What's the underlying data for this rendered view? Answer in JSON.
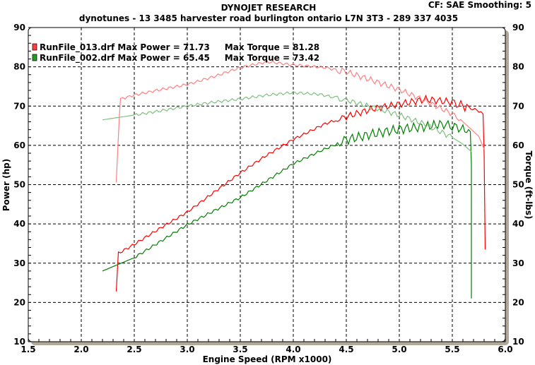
{
  "chart_data": {
    "type": "line",
    "title": "DYNOJET RESEARCH",
    "subtitle": "dynotunes - 13 3485 harvester road burlington ontario  L7N 3T3 - 289 337 4035",
    "info": "CF: SAE  Smoothing: 5",
    "xlabel": "Engine Speed (RPM x1000)",
    "ylabel": "Power (hp)",
    "y2label": "Torque (ft-lbs)",
    "xlim": [
      1.5,
      6.0
    ],
    "ylim": [
      10,
      90
    ],
    "xticks": [
      "1.5",
      "2.0",
      "2.5",
      "3.0",
      "3.5",
      "4.0",
      "4.5",
      "5.0",
      "5.5",
      "6.0"
    ],
    "yticks": [
      "10",
      "20",
      "30",
      "40",
      "50",
      "60",
      "70",
      "80",
      "90"
    ],
    "grid": true,
    "legend_placement": "top-left",
    "legend": [
      {
        "text": "RunFile_013.drf Max Power = 71.73     Max Torque = 81.28",
        "color": "#ff0000"
      },
      {
        "text": "RunFile_002.drf Max Power = 65.45     Max Torque = 73.42",
        "color": "#00a000"
      }
    ],
    "series": [
      {
        "name": "RunFile_013.drf Power",
        "color": "#ff0000",
        "x": [
          2.33,
          2.35,
          2.5,
          2.75,
          3.0,
          3.25,
          3.5,
          3.75,
          4.0,
          4.3,
          4.5,
          4.75,
          5.0,
          5.25,
          5.5,
          5.6,
          5.75,
          5.79,
          5.8,
          5.81
        ],
        "y": [
          22.8,
          32.5,
          34.8,
          39,
          43,
          48,
          53,
          57.5,
          61.5,
          65.5,
          67.3,
          69.3,
          70.5,
          71.73,
          71,
          70,
          68.8,
          68,
          58,
          33.5
        ]
      },
      {
        "name": "RunFile_013.drf Torque",
        "color": "#ff8080",
        "x": [
          2.33,
          2.36,
          2.37,
          2.5,
          2.75,
          3.0,
          3.25,
          3.5,
          3.75,
          4.0,
          4.3,
          4.5,
          4.75,
          5.0,
          5.25,
          5.5,
          5.6,
          5.75,
          5.8
        ],
        "y": [
          50.6,
          68,
          71.8,
          72.8,
          74.2,
          75.5,
          77.5,
          79.8,
          81.28,
          80.5,
          79.8,
          78.7,
          76.5,
          74.2,
          71.3,
          68,
          66,
          62.3,
          59
        ]
      },
      {
        "name": "RunFile_002.drf Power",
        "color": "#008000",
        "x": [
          2.2,
          2.5,
          2.75,
          3.0,
          3.25,
          3.5,
          3.75,
          4.0,
          4.25,
          4.5,
          4.75,
          5.0,
          5.25,
          5.4,
          5.6,
          5.67,
          5.68,
          5.68
        ],
        "y": [
          28,
          31.4,
          35.6,
          39.8,
          43.3,
          46.7,
          51,
          55.3,
          58.5,
          61.4,
          62.9,
          64.1,
          64.8,
          65.45,
          64.2,
          63.5,
          55,
          21
        ]
      },
      {
        "name": "RunFile_002.drf Torque",
        "color": "#80c080",
        "x": [
          2.2,
          2.5,
          2.75,
          3.0,
          3.25,
          3.5,
          3.75,
          4.0,
          4.25,
          4.5,
          4.75,
          5.0,
          5.25,
          5.5,
          5.6,
          5.68
        ],
        "y": [
          66.5,
          67.7,
          68.8,
          70,
          71,
          71.8,
          72.8,
          73.42,
          73,
          71.5,
          69.7,
          67.7,
          65.3,
          62,
          60.3,
          58.4
        ]
      }
    ]
  }
}
